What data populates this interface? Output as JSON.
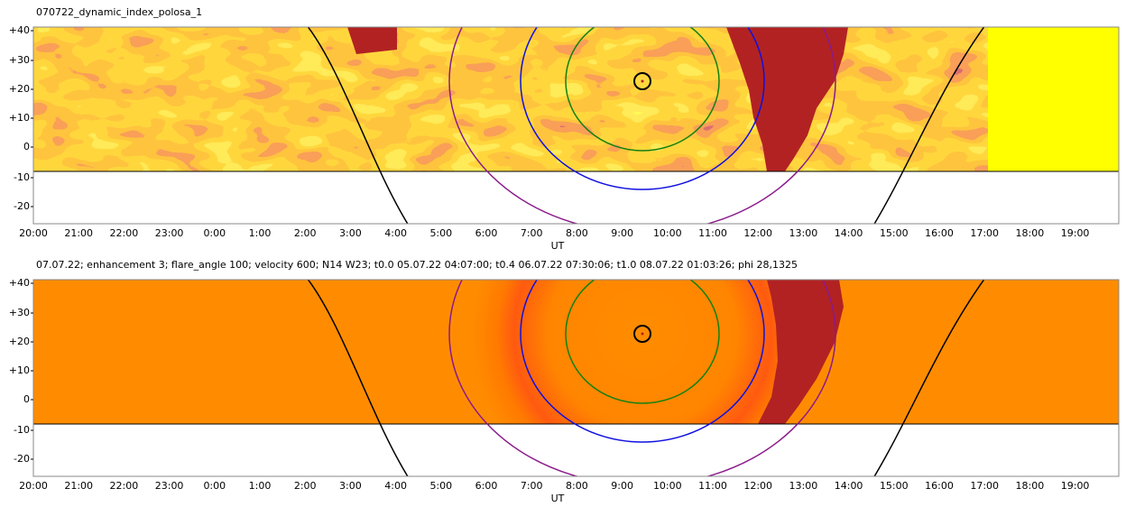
{
  "panels": [
    {
      "title": "070722_dynamic_index_polosa_1",
      "y_labels": [
        "+40",
        "+30",
        "+20",
        "+10",
        "0",
        "-10",
        "-20"
      ],
      "x_labels": [
        "20:00",
        "21:00",
        "22:00",
        "23:00",
        "0:00",
        "1:00",
        "2:00",
        "3:00",
        "4:00",
        "5:00",
        "6:00",
        "7:00",
        "8:00",
        "9:00",
        "10:00",
        "11:00",
        "12:00",
        "13:00",
        "14:00",
        "15:00",
        "16:00",
        "17:00",
        "18:00",
        "19:00"
      ],
      "x_axis_title": "UT"
    },
    {
      "title": "07.07.22; enhancement 3; flare_angle 100; velocity 600; N14 W23; t0.0 05.07.22 04:07:00; t0.4 06.07.22 07:30:06; t1.0 08.07.22 01:03:26; phi 28,1325",
      "y_labels": [
        "+40",
        "+30",
        "+20",
        "+10",
        "0",
        "-10",
        "-20"
      ],
      "x_labels": [
        "20:00",
        "21:00",
        "22:00",
        "23:00",
        "0:00",
        "1:00",
        "2:00",
        "3:00",
        "4:00",
        "5:00",
        "6:00",
        "7:00",
        "8:00",
        "9:00",
        "10:00",
        "11:00",
        "12:00",
        "13:00",
        "14:00",
        "15:00",
        "16:00",
        "17:00",
        "18:00",
        "19:00"
      ],
      "x_axis_title": "UT"
    }
  ]
}
